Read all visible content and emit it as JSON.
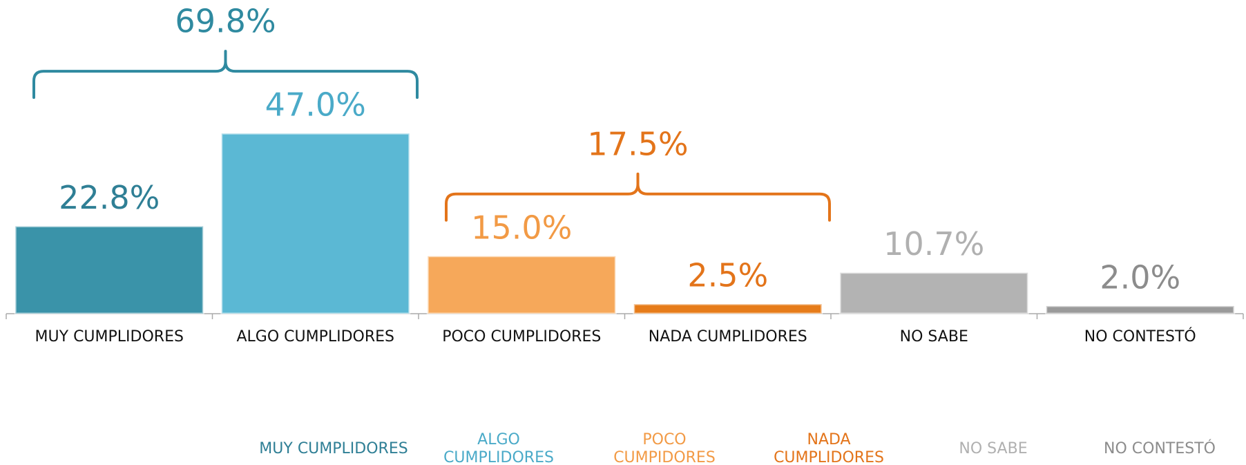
{
  "chart_data": {
    "type": "bar",
    "categories": [
      "MUY CUMPLIDORES",
      "ALGO CUMPLIDORES",
      "POCO CUMPLIDORES",
      "NADA CUMPLIDORES",
      "NO SABE",
      "NO CONTESTÓ"
    ],
    "values": [
      22.8,
      47.0,
      15.0,
      2.5,
      10.7,
      2.0
    ],
    "value_labels": [
      "22.8%",
      "47.0%",
      "15.0%",
      "2.5%",
      "10.7%",
      "2.0%"
    ],
    "colors": [
      "#3a93a9",
      "#5bb8d4",
      "#f6a85a",
      "#e67c1a",
      "#b3b3b3",
      "#9a9a9a"
    ],
    "label_colors": [
      "#2f7f95",
      "#4aaac8",
      "#f29a45",
      "#e3741a",
      "#b0b0b0",
      "#8c8c8c"
    ],
    "legend": [
      "MUY CUMPLIDORES",
      "ALGO CUMPLIDORES",
      "POCO CUMPIDORES",
      "NADA CUMPLIDORES",
      "NO SABE",
      "NO CONTESTÓ"
    ],
    "annotations": [
      {
        "label": "69.8%",
        "value": 69.8,
        "from": 0,
        "to": 1,
        "color": "#2f8aa0"
      },
      {
        "label": "17.5%",
        "value": 17.5,
        "from": 2,
        "to": 3,
        "color": "#e3741a"
      }
    ]
  }
}
